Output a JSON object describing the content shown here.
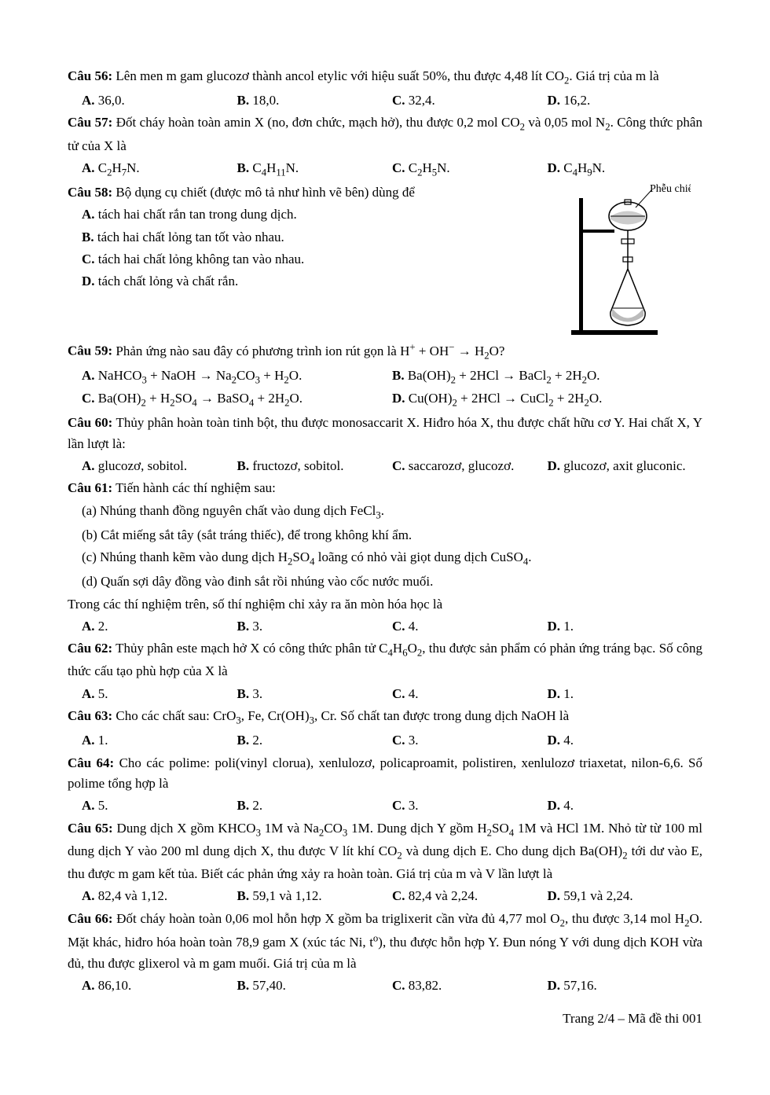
{
  "footer": "Trang 2/4 – Mã đề thi 001",
  "fig58_label": "Phễu chiết",
  "q56": {
    "label": "Câu 56:",
    "text": " Lên men m gam glucozơ thành ancol etylic với hiệu suất 50%, thu được 4,48 lít CO<sub>2</sub>. Giá trị của m là",
    "A": "36,0.",
    "B": "18,0.",
    "C": "32,4.",
    "D": "16,2."
  },
  "q57": {
    "label": "Câu 57:",
    "text": " Đốt cháy hoàn toàn amin X (no, đơn chức, mạch hở), thu được 0,2 mol CO<sub>2</sub> và 0,05 mol N<sub>2</sub>. Công thức phân tử của X là",
    "A": "C<sub>2</sub>H<sub>7</sub>N.",
    "B": "C<sub>4</sub>H<sub>11</sub>N.",
    "C": "C<sub>2</sub>H<sub>5</sub>N.",
    "D": "C<sub>4</sub>H<sub>9</sub>N."
  },
  "q58": {
    "label": "Câu 58:",
    "text": " Bộ dụng cụ chiết (được mô tả như hình vẽ bên) dùng để",
    "A": "tách hai chất rắn tan trong dung dịch.",
    "B": "tách hai chất lỏng tan tốt vào nhau.",
    "C": "tách hai chất lỏng không tan vào nhau.",
    "D": "tách chất lỏng và chất rắn."
  },
  "q59": {
    "label": "Câu 59:",
    "text": " Phản ứng nào sau đây có phương trình ion rút gọn là H<sup>+</sup> + OH<sup>−</sup> → H<sub>2</sub>O?",
    "A": "NaHCO<sub>3</sub> + NaOH → Na<sub>2</sub>CO<sub>3</sub> + H<sub>2</sub>O.",
    "B": "Ba(OH)<sub>2</sub> + 2HCl → BaCl<sub>2</sub> + 2H<sub>2</sub>O.",
    "C": "Ba(OH)<sub>2</sub> + H<sub>2</sub>SO<sub>4</sub> → BaSO<sub>4</sub> + 2H<sub>2</sub>O.",
    "D": "Cu(OH)<sub>2</sub> + 2HCl → CuCl<sub>2</sub> + 2H<sub>2</sub>O."
  },
  "q60": {
    "label": "Câu 60:",
    "text": " Thủy phân hoàn toàn tinh bột, thu được monosaccarit X. Hiđro hóa X, thu được chất hữu cơ Y. Hai chất X, Y lần lượt là:",
    "A": "glucozơ, sobitol.",
    "B": "fructozơ, sobitol.",
    "C": "saccarozơ, glucozơ.",
    "D": "glucozơ, axit gluconic."
  },
  "q61": {
    "label": "Câu 61:",
    "text": " Tiến hành các thí nghiệm sau:",
    "a": "(a) Nhúng thanh đồng nguyên chất vào dung dịch FeCl<sub>3</sub>.",
    "b": "(b) Cắt miếng sắt tây (sắt tráng thiếc), để trong không khí ẩm.",
    "c": "(c) Nhúng thanh kẽm vào dung dịch H<sub>2</sub>SO<sub>4</sub> loãng có nhỏ vài giọt dung dịch CuSO<sub>4</sub>.",
    "d": "(d) Quấn sợi dây đồng vào đinh sắt rồi nhúng vào cốc nước muối.",
    "tail": "Trong các thí nghiệm trên, số thí nghiệm chỉ xảy ra ăn mòn hóa học là",
    "A": "2.",
    "B": "3.",
    "C": "4.",
    "D": "1."
  },
  "q62": {
    "label": "Câu 62:",
    "text": " Thủy phân este mạch hở X có công thức phân tử C<sub>4</sub>H<sub>6</sub>O<sub>2</sub>, thu được sản phẩm có phản ứng tráng bạc. Số công thức cấu tạo phù hợp của X là",
    "A": "5.",
    "B": "3.",
    "C": "4.",
    "D": "1."
  },
  "q63": {
    "label": "Câu 63:",
    "text": " Cho các chất sau: CrO<sub>3</sub>, Fe, Cr(OH)<sub>3</sub>, Cr. Số chất tan được trong dung dịch NaOH là",
    "A": "1.",
    "B": "2.",
    "C": "3.",
    "D": "4."
  },
  "q64": {
    "label": "Câu 64:",
    "text": " Cho các polime: poli(vinyl clorua), xenlulozơ, policaproamit, polistiren, xenlulozơ triaxetat, nilon-6,6. Số polime tổng hợp là",
    "A": "5.",
    "B": "2.",
    "C": "3.",
    "D": "4."
  },
  "q65": {
    "label": "Câu 65:",
    "text": " Dung dịch X gồm KHCO<sub>3</sub> 1M và Na<sub>2</sub>CO<sub>3</sub> 1M. Dung dịch Y gồm H<sub>2</sub>SO<sub>4</sub> 1M và HCl 1M. Nhỏ từ từ 100 ml dung dịch Y vào 200 ml dung dịch X, thu được V lít khí CO<sub>2</sub> và dung dịch E. Cho dung dịch Ba(OH)<sub>2</sub> tới dư vào E, thu được m gam kết tủa. Biết các phản ứng xảy ra hoàn toàn. Giá trị của m và V lần lượt là",
    "A": "82,4 và 1,12.",
    "B": "59,1 và 1,12.",
    "C": "82,4 và 2,24.",
    "D": "59,1 và 2,24."
  },
  "q66": {
    "label": "Câu 66:",
    "text": " Đốt cháy hoàn toàn 0,06 mol hỗn hợp X gồm ba triglixerit cần vừa đủ 4,77 mol O<sub>2</sub>, thu được 3,14 mol H<sub>2</sub>O. Mặt khác, hiđro hóa hoàn toàn 78,9 gam X (xúc tác Ni, t<sup>o</sup>), thu được hỗn hợp Y. Đun nóng Y với dung dịch KOH vừa đủ, thu được glixerol và m gam muối. Giá trị của m là",
    "A": "86,10.",
    "B": "57,40.",
    "C": "83,82.",
    "D": "57,16."
  },
  "labels": {
    "A": "A.",
    "B": "B.",
    "C": "C.",
    "D": "D."
  }
}
